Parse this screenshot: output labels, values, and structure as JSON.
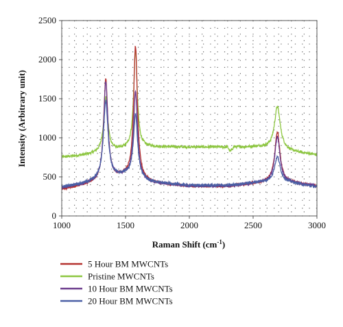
{
  "chart_data": {
    "type": "line",
    "title": "",
    "xlabel": "Raman Shift (cm",
    "xlabel_sup": "-1",
    "xlabel_suffix": ")",
    "ylabel": "Intensity (Arbitrary unit)",
    "xlim": [
      1000,
      3000
    ],
    "ylim": [
      0,
      2500
    ],
    "xticks": [
      "1000",
      "1500",
      "2000",
      "2500",
      "3000"
    ],
    "yticks": [
      "0",
      "500",
      "1000",
      "1500",
      "2000",
      "2500"
    ],
    "grid": "dotted",
    "legend_position": "bottom",
    "series": [
      {
        "name": "5 Hour BM MWCNTs",
        "color": "#b5322f",
        "baseline": [
          [
            1000,
            340
          ],
          [
            1200,
            400
          ],
          [
            1500,
            500
          ],
          [
            1700,
            420
          ],
          [
            2000,
            380
          ],
          [
            2300,
            380
          ],
          [
            2550,
            420
          ],
          [
            2800,
            420
          ],
          [
            3000,
            380
          ]
        ],
        "peaks": [
          [
            1345,
            1300,
            20
          ],
          [
            1578,
            1700,
            18
          ],
          [
            2690,
            650,
            25
          ]
        ]
      },
      {
        "name": "Pristine MWCNTs",
        "color": "#8cc63f",
        "baseline": [
          [
            1000,
            750
          ],
          [
            1200,
            780
          ],
          [
            1500,
            850
          ],
          [
            1700,
            880
          ],
          [
            2000,
            880
          ],
          [
            2300,
            880
          ],
          [
            2320,
            820
          ],
          [
            2350,
            880
          ],
          [
            2550,
            880
          ],
          [
            2800,
            820
          ],
          [
            3000,
            780
          ]
        ],
        "peaks": [
          [
            1345,
            700,
            20
          ],
          [
            1578,
            1250,
            17
          ],
          [
            2690,
            550,
            28
          ]
        ]
      },
      {
        "name": "10 Hour BM MWCNTs",
        "color": "#6a3a8c",
        "baseline": [
          [
            1000,
            360
          ],
          [
            1200,
            410
          ],
          [
            1500,
            510
          ],
          [
            1700,
            420
          ],
          [
            2000,
            380
          ],
          [
            2300,
            380
          ],
          [
            2550,
            420
          ],
          [
            2800,
            420
          ],
          [
            3000,
            380
          ]
        ],
        "peaks": [
          [
            1345,
            1250,
            20
          ],
          [
            1578,
            1100,
            19
          ],
          [
            2690,
            600,
            25
          ]
        ]
      },
      {
        "name": "20 Hour BM MWCNTs",
        "color": "#4a5fa5",
        "baseline": [
          [
            1000,
            370
          ],
          [
            1200,
            420
          ],
          [
            1500,
            520
          ],
          [
            1700,
            430
          ],
          [
            2000,
            390
          ],
          [
            2300,
            390
          ],
          [
            2550,
            430
          ],
          [
            2800,
            420
          ],
          [
            3000,
            370
          ]
        ],
        "peaks": [
          [
            1345,
            1000,
            22
          ],
          [
            1578,
            800,
            20
          ],
          [
            2690,
            330,
            28
          ]
        ]
      }
    ]
  }
}
